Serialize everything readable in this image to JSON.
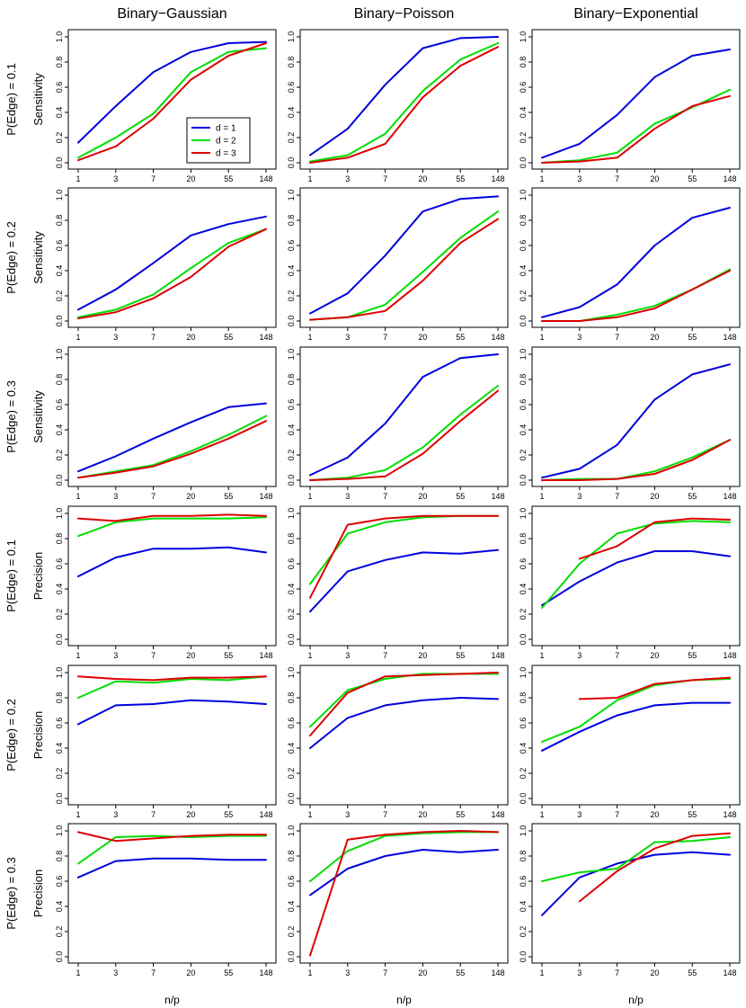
{
  "figure": {
    "column_titles": [
      "Binary−Gaussian",
      "Binary−Poisson",
      "Binary−Exponential"
    ],
    "row_labels": [
      {
        "condition": "P(Edge) = 0.1",
        "metric": "Sensitivity"
      },
      {
        "condition": "P(Edge) = 0.2",
        "metric": "Sensitivity"
      },
      {
        "condition": "P(Edge) = 0.3",
        "metric": "Sensitivity"
      },
      {
        "condition": "P(Edge) = 0.1",
        "metric": "Precision"
      },
      {
        "condition": "P(Edge) = 0.2",
        "metric": "Precision"
      },
      {
        "condition": "P(Edge) = 0.3",
        "metric": "Precision"
      }
    ],
    "xlabel": "n/p",
    "x_tick_labels": [
      "1",
      "3",
      "7",
      "20",
      "55",
      "148"
    ],
    "y_tick_labels": [
      "0.0",
      "0.2",
      "0.4",
      "0.6",
      "0.8",
      "1.0"
    ],
    "legend": [
      {
        "label": "d = 1",
        "color": "#0000dd"
      },
      {
        "label": "d = 2",
        "color": "#00dd00"
      },
      {
        "label": "d = 3",
        "color": "#dd0000"
      }
    ]
  },
  "chart_data": [
    {
      "type": "line",
      "panel": "sensitivity-p0.1-binary-gaussian",
      "x": [
        1,
        3,
        7,
        20,
        55,
        148
      ],
      "ylim": [
        0,
        1
      ],
      "grid": false,
      "series": [
        {
          "name": "d = 1",
          "color": "#0000dd",
          "values": [
            0.16,
            0.45,
            0.72,
            0.88,
            0.95,
            0.96
          ]
        },
        {
          "name": "d = 2",
          "color": "#00dd00",
          "values": [
            0.04,
            0.2,
            0.39,
            0.72,
            0.88,
            0.91
          ]
        },
        {
          "name": "d = 3",
          "color": "#dd0000",
          "values": [
            0.02,
            0.13,
            0.35,
            0.66,
            0.85,
            0.95
          ]
        }
      ]
    },
    {
      "type": "line",
      "panel": "sensitivity-p0.1-binary-poisson",
      "x": [
        1,
        3,
        7,
        20,
        55,
        148
      ],
      "ylim": [
        0,
        1
      ],
      "series": [
        {
          "name": "d = 1",
          "color": "#0000dd",
          "values": [
            0.06,
            0.27,
            0.62,
            0.91,
            0.99,
            1.0
          ]
        },
        {
          "name": "d = 2",
          "color": "#00dd00",
          "values": [
            0.01,
            0.06,
            0.23,
            0.57,
            0.82,
            0.95
          ]
        },
        {
          "name": "d = 3",
          "color": "#dd0000",
          "values": [
            0.0,
            0.04,
            0.15,
            0.52,
            0.77,
            0.92
          ]
        }
      ]
    },
    {
      "type": "line",
      "panel": "sensitivity-p0.1-binary-exponential",
      "x": [
        1,
        3,
        7,
        20,
        55,
        148
      ],
      "ylim": [
        0,
        1
      ],
      "series": [
        {
          "name": "d = 1",
          "color": "#0000dd",
          "values": [
            0.04,
            0.15,
            0.38,
            0.68,
            0.85,
            0.9
          ]
        },
        {
          "name": "d = 2",
          "color": "#00dd00",
          "values": [
            0.0,
            0.02,
            0.08,
            0.31,
            0.44,
            0.58
          ]
        },
        {
          "name": "d = 3",
          "color": "#dd0000",
          "values": [
            0.0,
            0.01,
            0.04,
            0.27,
            0.45,
            0.53
          ]
        }
      ]
    },
    {
      "type": "line",
      "panel": "sensitivity-p0.2-binary-gaussian",
      "x": [
        1,
        3,
        7,
        20,
        55,
        148
      ],
      "ylim": [
        0,
        1
      ],
      "series": [
        {
          "name": "d = 1",
          "color": "#0000dd",
          "values": [
            0.09,
            0.25,
            0.46,
            0.68,
            0.77,
            0.83
          ]
        },
        {
          "name": "d = 2",
          "color": "#00dd00",
          "values": [
            0.03,
            0.09,
            0.21,
            0.42,
            0.62,
            0.73
          ]
        },
        {
          "name": "d = 3",
          "color": "#dd0000",
          "values": [
            0.02,
            0.07,
            0.18,
            0.35,
            0.59,
            0.73
          ]
        }
      ]
    },
    {
      "type": "line",
      "panel": "sensitivity-p0.2-binary-poisson",
      "x": [
        1,
        3,
        7,
        20,
        55,
        148
      ],
      "ylim": [
        0,
        1
      ],
      "series": [
        {
          "name": "d = 1",
          "color": "#0000dd",
          "values": [
            0.06,
            0.22,
            0.52,
            0.87,
            0.97,
            0.99
          ]
        },
        {
          "name": "d = 2",
          "color": "#00dd00",
          "values": [
            0.01,
            0.03,
            0.13,
            0.39,
            0.66,
            0.87
          ]
        },
        {
          "name": "d = 3",
          "color": "#dd0000",
          "values": [
            0.01,
            0.03,
            0.08,
            0.32,
            0.62,
            0.81
          ]
        }
      ]
    },
    {
      "type": "line",
      "panel": "sensitivity-p0.2-binary-exponential",
      "x": [
        1,
        3,
        7,
        20,
        55,
        148
      ],
      "ylim": [
        0,
        1
      ],
      "series": [
        {
          "name": "d = 1",
          "color": "#0000dd",
          "values": [
            0.03,
            0.11,
            0.29,
            0.6,
            0.82,
            0.9
          ]
        },
        {
          "name": "d = 2",
          "color": "#00dd00",
          "values": [
            0.0,
            0.0,
            0.05,
            0.12,
            0.25,
            0.41
          ]
        },
        {
          "name": "d = 3",
          "color": "#dd0000",
          "values": [
            0.0,
            0.0,
            0.03,
            0.1,
            0.25,
            0.4
          ]
        }
      ]
    },
    {
      "type": "line",
      "panel": "sensitivity-p0.3-binary-gaussian",
      "x": [
        1,
        3,
        7,
        20,
        55,
        148
      ],
      "ylim": [
        0,
        1
      ],
      "series": [
        {
          "name": "d = 1",
          "color": "#0000dd",
          "values": [
            0.07,
            0.19,
            0.33,
            0.46,
            0.58,
            0.61
          ]
        },
        {
          "name": "d = 2",
          "color": "#00dd00",
          "values": [
            0.02,
            0.07,
            0.12,
            0.23,
            0.36,
            0.51
          ]
        },
        {
          "name": "d = 3",
          "color": "#dd0000",
          "values": [
            0.02,
            0.06,
            0.11,
            0.21,
            0.33,
            0.47
          ]
        }
      ]
    },
    {
      "type": "line",
      "panel": "sensitivity-p0.3-binary-poisson",
      "x": [
        1,
        3,
        7,
        20,
        55,
        148
      ],
      "ylim": [
        0,
        1
      ],
      "series": [
        {
          "name": "d = 1",
          "color": "#0000dd",
          "values": [
            0.04,
            0.18,
            0.45,
            0.82,
            0.97,
            1.0
          ]
        },
        {
          "name": "d = 2",
          "color": "#00dd00",
          "values": [
            0.0,
            0.02,
            0.08,
            0.26,
            0.52,
            0.75
          ]
        },
        {
          "name": "d = 3",
          "color": "#dd0000",
          "values": [
            0.0,
            0.01,
            0.03,
            0.21,
            0.47,
            0.71
          ]
        }
      ]
    },
    {
      "type": "line",
      "panel": "sensitivity-p0.3-binary-exponential",
      "x": [
        1,
        3,
        7,
        20,
        55,
        148
      ],
      "ylim": [
        0,
        1
      ],
      "series": [
        {
          "name": "d = 1",
          "color": "#0000dd",
          "values": [
            0.02,
            0.09,
            0.28,
            0.64,
            0.84,
            0.92
          ]
        },
        {
          "name": "d = 2",
          "color": "#00dd00",
          "values": [
            0.0,
            0.01,
            0.01,
            0.07,
            0.18,
            0.32
          ]
        },
        {
          "name": "d = 3",
          "color": "#dd0000",
          "values": [
            0.0,
            0.0,
            0.01,
            0.05,
            0.16,
            0.32
          ]
        }
      ]
    },
    {
      "type": "line",
      "panel": "precision-p0.1-binary-gaussian",
      "x": [
        1,
        3,
        7,
        20,
        55,
        148
      ],
      "ylim": [
        0,
        1
      ],
      "series": [
        {
          "name": "d = 1",
          "color": "#0000dd",
          "values": [
            0.5,
            0.65,
            0.72,
            0.72,
            0.73,
            0.69
          ]
        },
        {
          "name": "d = 2",
          "color": "#00dd00",
          "values": [
            0.82,
            0.93,
            0.96,
            0.96,
            0.96,
            0.97
          ]
        },
        {
          "name": "d = 3",
          "color": "#dd0000",
          "values": [
            0.96,
            0.94,
            0.98,
            0.98,
            0.99,
            0.98
          ]
        }
      ]
    },
    {
      "type": "line",
      "panel": "precision-p0.1-binary-poisson",
      "x": [
        1,
        3,
        7,
        20,
        55,
        148
      ],
      "ylim": [
        0,
        1
      ],
      "series": [
        {
          "name": "d = 1",
          "color": "#0000dd",
          "values": [
            0.22,
            0.54,
            0.63,
            0.69,
            0.68,
            0.71
          ]
        },
        {
          "name": "d = 2",
          "color": "#00dd00",
          "values": [
            0.44,
            0.84,
            0.93,
            0.97,
            0.98,
            0.98
          ]
        },
        {
          "name": "d = 3",
          "color": "#dd0000",
          "values": [
            0.33,
            0.91,
            0.96,
            0.98,
            0.98,
            0.98
          ]
        }
      ]
    },
    {
      "type": "line",
      "panel": "precision-p0.1-binary-exponential",
      "x": [
        1,
        3,
        7,
        20,
        55,
        148
      ],
      "ylim": [
        0,
        1
      ],
      "series": [
        {
          "name": "d = 1",
          "color": "#0000dd",
          "values": [
            0.27,
            0.46,
            0.61,
            0.7,
            0.7,
            0.66
          ]
        },
        {
          "name": "d = 2",
          "color": "#00dd00",
          "values": [
            0.25,
            0.6,
            0.84,
            0.92,
            0.94,
            0.93
          ]
        },
        {
          "name": "d = 3",
          "color": "#dd0000",
          "values": [
            null,
            0.64,
            0.74,
            0.93,
            0.96,
            0.95
          ]
        }
      ]
    },
    {
      "type": "line",
      "panel": "precision-p0.2-binary-gaussian",
      "x": [
        1,
        3,
        7,
        20,
        55,
        148
      ],
      "ylim": [
        0,
        1
      ],
      "series": [
        {
          "name": "d = 1",
          "color": "#0000dd",
          "values": [
            0.59,
            0.74,
            0.75,
            0.78,
            0.77,
            0.75
          ]
        },
        {
          "name": "d = 2",
          "color": "#00dd00",
          "values": [
            0.8,
            0.93,
            0.92,
            0.95,
            0.94,
            0.97
          ]
        },
        {
          "name": "d = 3",
          "color": "#dd0000",
          "values": [
            0.97,
            0.95,
            0.94,
            0.96,
            0.96,
            0.97
          ]
        }
      ]
    },
    {
      "type": "line",
      "panel": "precision-p0.2-binary-poisson",
      "x": [
        1,
        3,
        7,
        20,
        55,
        148
      ],
      "ylim": [
        0,
        1
      ],
      "series": [
        {
          "name": "d = 1",
          "color": "#0000dd",
          "values": [
            0.4,
            0.64,
            0.74,
            0.78,
            0.8,
            0.79
          ]
        },
        {
          "name": "d = 2",
          "color": "#00dd00",
          "values": [
            0.57,
            0.86,
            0.95,
            0.99,
            0.99,
            0.99
          ]
        },
        {
          "name": "d = 3",
          "color": "#dd0000",
          "values": [
            0.5,
            0.84,
            0.97,
            0.98,
            0.99,
            1.0
          ]
        }
      ]
    },
    {
      "type": "line",
      "panel": "precision-p0.2-binary-exponential",
      "x": [
        1,
        3,
        7,
        20,
        55,
        148
      ],
      "ylim": [
        0,
        1
      ],
      "series": [
        {
          "name": "d = 1",
          "color": "#0000dd",
          "values": [
            0.38,
            0.53,
            0.66,
            0.74,
            0.76,
            0.76
          ]
        },
        {
          "name": "d = 2",
          "color": "#00dd00",
          "values": [
            0.45,
            0.57,
            0.78,
            0.9,
            0.94,
            0.95
          ]
        },
        {
          "name": "d = 3",
          "color": "#dd0000",
          "values": [
            null,
            0.79,
            0.8,
            0.91,
            0.94,
            0.96
          ]
        }
      ]
    },
    {
      "type": "line",
      "panel": "precision-p0.3-binary-gaussian",
      "x": [
        1,
        3,
        7,
        20,
        55,
        148
      ],
      "ylim": [
        0,
        1
      ],
      "series": [
        {
          "name": "d = 1",
          "color": "#0000dd",
          "values": [
            0.63,
            0.76,
            0.78,
            0.78,
            0.77,
            0.77
          ]
        },
        {
          "name": "d = 2",
          "color": "#00dd00",
          "values": [
            0.74,
            0.95,
            0.96,
            0.95,
            0.96,
            0.96
          ]
        },
        {
          "name": "d = 3",
          "color": "#dd0000",
          "values": [
            0.99,
            0.92,
            0.94,
            0.96,
            0.97,
            0.97
          ]
        }
      ]
    },
    {
      "type": "line",
      "panel": "precision-p0.3-binary-poisson",
      "x": [
        1,
        3,
        7,
        20,
        55,
        148
      ],
      "ylim": [
        0,
        1
      ],
      "series": [
        {
          "name": "d = 1",
          "color": "#0000dd",
          "values": [
            0.49,
            0.7,
            0.8,
            0.85,
            0.83,
            0.85
          ]
        },
        {
          "name": "d = 2",
          "color": "#00dd00",
          "values": [
            0.6,
            0.84,
            0.96,
            0.98,
            0.99,
            0.99
          ]
        },
        {
          "name": "d = 3",
          "color": "#dd0000",
          "values": [
            0.01,
            0.93,
            0.97,
            0.99,
            1.0,
            0.99
          ]
        }
      ]
    },
    {
      "type": "line",
      "panel": "precision-p0.3-binary-exponential",
      "x": [
        1,
        3,
        7,
        20,
        55,
        148
      ],
      "ylim": [
        0,
        1
      ],
      "series": [
        {
          "name": "d = 1",
          "color": "#0000dd",
          "values": [
            0.33,
            0.63,
            0.74,
            0.81,
            0.83,
            0.81
          ]
        },
        {
          "name": "d = 2",
          "color": "#00dd00",
          "values": [
            0.6,
            0.67,
            0.7,
            0.91,
            0.92,
            0.95
          ]
        },
        {
          "name": "d = 3",
          "color": "#dd0000",
          "values": [
            null,
            0.44,
            0.68,
            0.86,
            0.96,
            0.98
          ]
        }
      ]
    }
  ]
}
